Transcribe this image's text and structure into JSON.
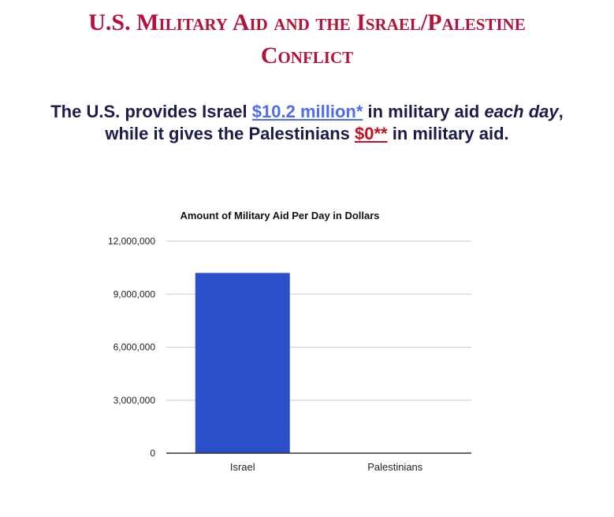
{
  "title": {
    "line1": "U.S. Military Aid and the Israel/Palestine",
    "line2": "Conflict"
  },
  "subtitle": {
    "line1_prefix": "The U.S. provides Israel ",
    "israel_amount": "$10.2 million*",
    "line1_middle": " in military aid ",
    "line1_emphasis": "each day",
    "line1_suffix": ",",
    "line2_prefix": "while it gives the Palestinians ",
    "palestinian_amount": "$0**",
    "line2_suffix": " in military aid."
  },
  "colors": {
    "title": "#b3133a",
    "subtitle_text": "#1c1c4a",
    "israel_amount": "#4f6cf0",
    "palestinian_amount": "#c2121d",
    "bar": "#2a4fc9",
    "grid": "#cccccc",
    "axis": "#333333"
  },
  "chart_data": {
    "type": "bar",
    "title": "Amount of Military Aid Per Day in Dollars",
    "categories": [
      "Israel",
      "Palestinians"
    ],
    "values": [
      10200000,
      0
    ],
    "xlabel": "",
    "ylabel": "",
    "ylim": [
      0,
      12000000
    ],
    "yticks": [
      0,
      3000000,
      6000000,
      9000000,
      12000000
    ],
    "ytick_labels": [
      "0",
      "3,000,000",
      "6,000,000",
      "9,000,000",
      "12,000,000"
    ],
    "grid": true,
    "legend": "none"
  }
}
